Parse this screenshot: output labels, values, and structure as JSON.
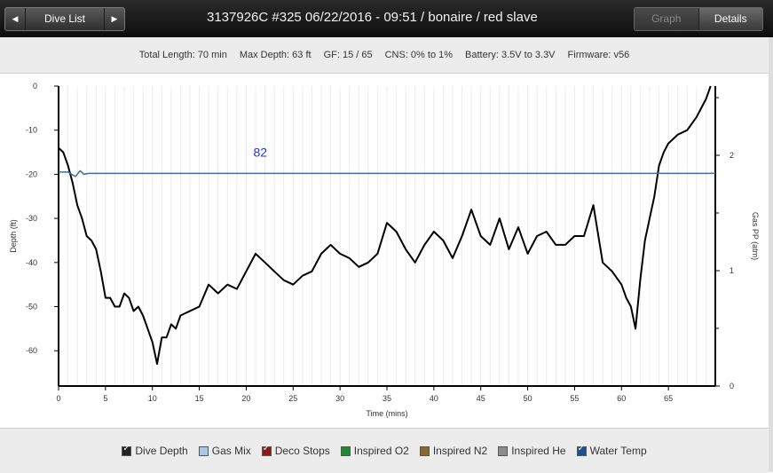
{
  "nav": {
    "prev_icon": "◀",
    "label": "Dive List",
    "next_icon": "▶"
  },
  "title": "3137926C #325 06/22/2016 - 09:51  / bonaire / red slave",
  "view_toggle": {
    "graph": "Graph",
    "details": "Details"
  },
  "info": [
    "Total Length: 70 min",
    "Max Depth: 63 ft",
    "GF: 15 / 65",
    "CNS: 0% to 1%",
    "Battery: 3.5V to 3.3V",
    "Firmware: v56"
  ],
  "legend": [
    {
      "label": "Dive Depth",
      "color": "#222222",
      "checked": true
    },
    {
      "label": "Gas Mix",
      "color": "#a9c8e8",
      "checked": false
    },
    {
      "label": "Deco Stops",
      "color": "#8b1a1a",
      "checked": true
    },
    {
      "label": "Inspired O2",
      "color": "#1e8c2c",
      "checked": false
    },
    {
      "label": "Inspired N2",
      "color": "#8a6a2a",
      "checked": false
    },
    {
      "label": "Inspired He",
      "color": "#8c8c8c",
      "checked": false
    },
    {
      "label": "Water Temp",
      "color": "#1f4f8f",
      "checked": true
    }
  ],
  "chart_data": {
    "type": "line",
    "xlabel": "Time (mins)",
    "ylabel": "Depth (ft)",
    "y2label": "Gas PP (atm)",
    "xlim": [
      0,
      70
    ],
    "ylim": [
      -68,
      0
    ],
    "y2lim": [
      0,
      2.6
    ],
    "x_ticks": [
      0,
      5,
      10,
      15,
      20,
      25,
      30,
      35,
      40,
      45,
      50,
      55,
      60,
      65
    ],
    "y_ticks": [
      0,
      -10,
      -20,
      -30,
      -40,
      -50,
      -60
    ],
    "y2_ticks": [
      0,
      1,
      2
    ],
    "grid": "vertical",
    "annotation": "82",
    "series": [
      {
        "name": "Dive Depth",
        "color": "#000000",
        "x": [
          0,
          0.5,
          1,
          1.5,
          2,
          2.5,
          3,
          3.5,
          4,
          4.5,
          5,
          5.5,
          6,
          6.5,
          7,
          7.5,
          8,
          8.5,
          9,
          9.5,
          10,
          10.5,
          11,
          11.5,
          12,
          12.5,
          13,
          14,
          15,
          16,
          17,
          18,
          19,
          20,
          21,
          22,
          23,
          24,
          25,
          26,
          27,
          28,
          29,
          30,
          31,
          32,
          33,
          34,
          35,
          36,
          37,
          38,
          39,
          40,
          41,
          42,
          43,
          44,
          45,
          46,
          47,
          48,
          49,
          50,
          51,
          52,
          53,
          54,
          55,
          56,
          57,
          58,
          59,
          60,
          60.5,
          61,
          61.5,
          62,
          62.5,
          63,
          63.5,
          64,
          64.5,
          65,
          66,
          67,
          68,
          68.5,
          69,
          69.5
        ],
        "y": [
          -14,
          -15,
          -18,
          -22,
          -27,
          -30,
          -34,
          -35,
          -37,
          -42,
          -48,
          -48,
          -50,
          -50,
          -47,
          -48,
          -51,
          -50,
          -52,
          -55,
          -58,
          -63,
          -57,
          -57,
          -54,
          -55,
          -52,
          -51,
          -50,
          -45,
          -47,
          -45,
          -46,
          -42,
          -38,
          -40,
          -42,
          -44,
          -45,
          -43,
          -42,
          -38,
          -36,
          -38,
          -39,
          -41,
          -40,
          -38,
          -31,
          -33,
          -37,
          -40,
          -36,
          -33,
          -35,
          -39,
          -34,
          -28,
          -34,
          -36,
          -30,
          -37,
          -32,
          -38,
          -34,
          -33,
          -36,
          -36,
          -34,
          -34,
          -27,
          -40,
          -42,
          -45,
          -48,
          -50,
          -55,
          -44,
          -35,
          -30,
          -25,
          -18,
          -15,
          -13,
          -11,
          -10,
          -7,
          -5,
          -3,
          0
        ]
      },
      {
        "name": "Water Temp",
        "color": "#3b6f9e",
        "x": [
          0,
          1,
          1.8,
          2.3,
          2.7,
          3.2,
          5,
          10,
          20,
          30,
          40,
          50,
          60,
          65,
          70
        ],
        "y": [
          -19.5,
          -19.5,
          -20.5,
          -19.2,
          -20,
          -19.8,
          -19.8,
          -19.8,
          -19.8,
          -19.8,
          -19.8,
          -19.8,
          -19.8,
          -19.8,
          -19.8
        ]
      }
    ]
  }
}
